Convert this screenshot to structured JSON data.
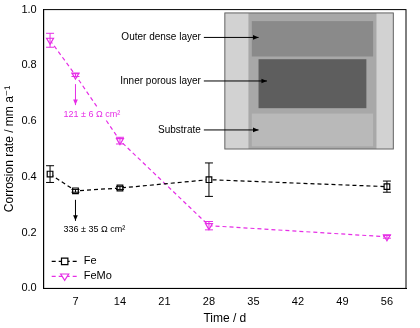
{
  "chart_data": {
    "type": "line",
    "x_label": "Time / d",
    "y_label": "Corrosion rate / mm a⁻¹",
    "x": [
      3,
      7,
      14,
      28,
      56
    ],
    "xlim": [
      2,
      59
    ],
    "xticks": [
      7,
      14,
      21,
      28,
      35,
      42,
      49,
      56
    ],
    "ylim": [
      0,
      1
    ],
    "yticks": [
      {
        "value": 0,
        "label": "0.0"
      },
      {
        "value": 0.2,
        "label": "0.2"
      },
      {
        "value": 0.4,
        "label": "0.4"
      },
      {
        "value": 0.6,
        "label": "0.6"
      },
      {
        "value": 0.8,
        "label": "0.8"
      },
      {
        "value": 1,
        "label": "1.0"
      }
    ],
    "grid": false,
    "legend": "bottom-left",
    "series": [
      {
        "name": "Fe",
        "color": "#000000",
        "marker": "square",
        "line_style": "dashed",
        "values": [
          0.41,
          0.35,
          0.36,
          0.39,
          0.365
        ],
        "errors": [
          0.03,
          0.005,
          0.005,
          0.06,
          0.02
        ]
      },
      {
        "name": "FeMo",
        "color": "#e62ee6",
        "marker": "triangle-down",
        "line_style": "dashed",
        "values": [
          0.89,
          0.765,
          0.53,
          0.225,
          0.185
        ],
        "errors": [
          0.025,
          0.005,
          0.012,
          0.015,
          0.005
        ]
      }
    ],
    "annotations": [
      {
        "text": "121 ± 6 Ω cm²",
        "series": "FeMo",
        "x": 7,
        "color": "#e62ee6"
      },
      {
        "text": "336 ± 35 Ω cm²",
        "series": "Fe",
        "x": 7,
        "color": "#000000"
      }
    ],
    "inset": {
      "labels": [
        "Outer dense layer",
        "Inner porous layer",
        "Substrate"
      ]
    }
  }
}
